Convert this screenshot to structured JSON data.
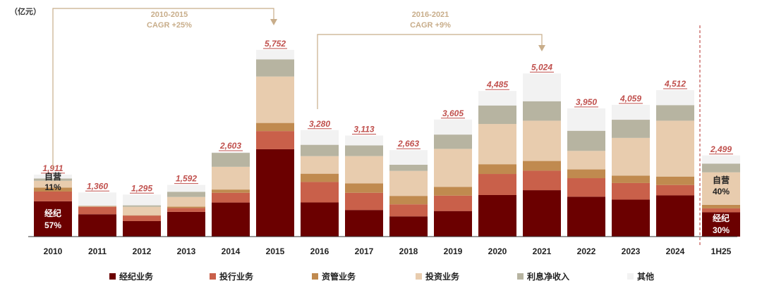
{
  "chart_data": {
    "type": "bar",
    "stacked": true,
    "unit": "（亿元）",
    "categories": [
      "2010",
      "2011",
      "2012",
      "2013",
      "2014",
      "2015",
      "2016",
      "2017",
      "2018",
      "2019",
      "2020",
      "2021",
      "2022",
      "2023",
      "2024",
      "1H25"
    ],
    "totals": [
      "1,911",
      "1,360",
      "1,295",
      "1,592",
      "2,603",
      "5,752",
      "3,280",
      "3,113",
      "2,663",
      "3,605",
      "4,485",
      "5,024",
      "3,950",
      "4,059",
      "4,512",
      "2,499"
    ],
    "series": [
      {
        "name": "经纪业务",
        "color": "#6b0000",
        "values": [
          1089,
          689,
          478,
          761,
          1050,
          2691,
          1053,
          820,
          624,
          788,
          1280,
          1430,
          1230,
          1140,
          1270,
          750
        ]
      },
      {
        "name": "投行业务",
        "color": "#c9604a",
        "values": [
          300,
          230,
          170,
          120,
          300,
          560,
          630,
          530,
          370,
          475,
          650,
          600,
          570,
          510,
          320,
          120
        ]
      },
      {
        "name": "资管业务",
        "color": "#c08a4f",
        "values": [
          120,
          10,
          10,
          40,
          100,
          250,
          255,
          290,
          260,
          270,
          300,
          300,
          270,
          230,
          260,
          110
        ]
      },
      {
        "name": "投资业务",
        "color": "#e8ccae",
        "values": [
          210,
          15,
          260,
          300,
          700,
          1430,
          540,
          840,
          770,
          1170,
          1240,
          1240,
          570,
          1160,
          1720,
          1000
        ]
      },
      {
        "name": "利息净收入",
        "color": "#b7b4a1",
        "values": [
          70,
          10,
          45,
          160,
          430,
          530,
          350,
          330,
          190,
          440,
          570,
          600,
          620,
          560,
          480,
          269
        ]
      },
      {
        "name": "其他",
        "color": "#f2f2f2",
        "values": [
          122,
          406,
          332,
          211,
          23,
          291,
          452,
          303,
          449,
          462,
          445,
          854,
          690,
          459,
          462,
          250
        ]
      }
    ],
    "annotations": {
      "cagr_1": {
        "period": "2010-2015",
        "label": "CAGR +25%"
      },
      "cagr_2": {
        "period": "2016-2021",
        "label": "CAGR +9%"
      },
      "left_top_label": "自营",
      "left_top_pct": "11%",
      "left_bottom_label": "经纪",
      "left_bottom_pct": "57%",
      "right_top_label": "自营",
      "right_top_pct": "40%",
      "right_bottom_label": "经纪",
      "right_bottom_pct": "30%"
    },
    "legend_position": "bottom"
  }
}
